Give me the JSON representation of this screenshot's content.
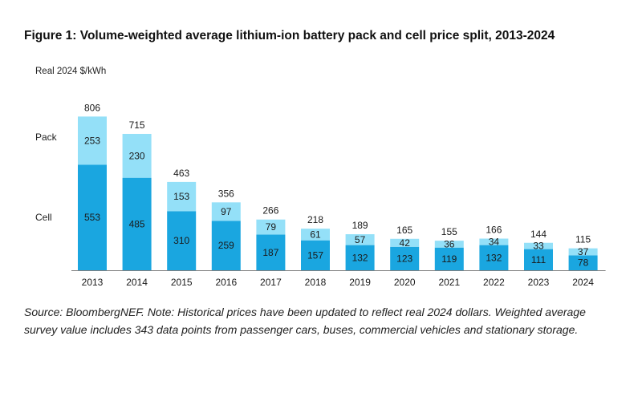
{
  "figure": {
    "title": "Figure 1: Volume-weighted average lithium-ion battery pack and cell price split, 2013-2024",
    "source": "Source: BloombergNEF. Note: Historical prices have been updated to reflect real 2024 dollars. Weighted average survey value includes 343 data points from passenger cars, buses, commercial vehicles and stationary storage."
  },
  "chart_data": {
    "type": "bar",
    "stacked": true,
    "ylabel": "Real 2024 $/kWh",
    "categories": [
      "2013",
      "2014",
      "2015",
      "2016",
      "2017",
      "2018",
      "2019",
      "2020",
      "2021",
      "2022",
      "2023",
      "2024"
    ],
    "series": [
      {
        "name": "Cell",
        "color": "#1aa6e0",
        "values": [
          553,
          485,
          310,
          259,
          187,
          157,
          132,
          123,
          119,
          132,
          111,
          78
        ]
      },
      {
        "name": "Pack",
        "color": "#94e0f8",
        "values": [
          253,
          230,
          153,
          97,
          79,
          61,
          57,
          42,
          36,
          34,
          33,
          37
        ]
      }
    ],
    "totals": [
      806,
      715,
      463,
      356,
      266,
      218,
      189,
      165,
      155,
      166,
      144,
      115
    ],
    "ylim": [
      0,
      820
    ],
    "grid": false,
    "legend": "left-inline"
  }
}
